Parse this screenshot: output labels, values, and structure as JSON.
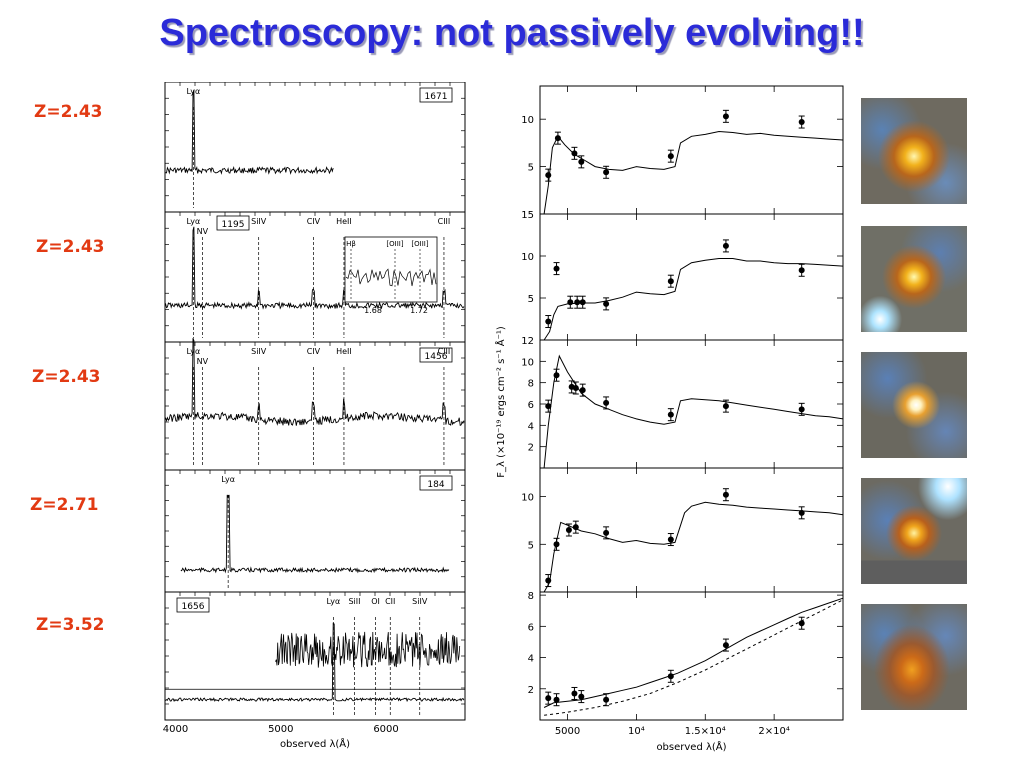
{
  "title": "Spectroscopy: not passively evolving!!",
  "redshifts": [
    "Z=2.43",
    "Z=2.43",
    "Z=2.43",
    "Z=2.71",
    "Z=3.52"
  ],
  "spectra": {
    "xlabel": "observed λ(Å)",
    "xticks": [
      "4000",
      "5000",
      "6000"
    ],
    "panels": [
      {
        "id": "1671",
        "lines": [
          {
            "label": "Lyα",
            "wl": 4170
          }
        ]
      },
      {
        "id": "1195",
        "lines": [
          {
            "label": "Lyα",
            "wl": 4170
          },
          {
            "label": "NV",
            "wl": 4255
          },
          {
            "label": "SiIV",
            "wl": 4790
          },
          {
            "label": "CIV",
            "wl": 5310
          },
          {
            "label": "HeII",
            "wl": 5600
          },
          {
            "label": "CIII",
            "wl": 6550
          }
        ],
        "inset": {
          "lines": [
            "Hβ",
            "[OIII]",
            "[OIII]"
          ],
          "xticks": [
            "1.68",
            "1.72"
          ]
        }
      },
      {
        "id": "1456",
        "lines": [
          {
            "label": "Lyα",
            "wl": 4170
          },
          {
            "label": "NV",
            "wl": 4255
          },
          {
            "label": "SiIV",
            "wl": 4790
          },
          {
            "label": "CIV",
            "wl": 5310
          },
          {
            "label": "HeII",
            "wl": 5600
          },
          {
            "label": "CIII",
            "wl": 6550
          }
        ]
      },
      {
        "id": "184",
        "lines": [
          {
            "label": "Lyα",
            "wl": 4500
          }
        ]
      },
      {
        "id": "1656",
        "lines": [
          {
            "label": "Lyα",
            "wl": 5500
          },
          {
            "label": "SiII",
            "wl": 5700
          },
          {
            "label": "OI",
            "wl": 5900
          },
          {
            "label": "CII",
            "wl": 6040
          },
          {
            "label": "SiIV",
            "wl": 6320
          }
        ]
      }
    ]
  },
  "chart_data": {
    "type": "scatter",
    "xlabel": "observed λ(Å)",
    "ylabel": "F_λ (×10⁻¹⁹ ergs cm⁻² s⁻¹ Å⁻¹)",
    "xticks": [
      "5000",
      "10⁴",
      "1.5×10⁴",
      "2×10⁴"
    ],
    "xlim": [
      3000,
      25000
    ],
    "panels": [
      {
        "ylim": [
          0,
          13.5
        ],
        "yticks": [
          "5",
          "10"
        ],
        "points": [
          [
            3600,
            4.1
          ],
          [
            4300,
            8.0
          ],
          [
            5500,
            6.4
          ],
          [
            6000,
            5.5
          ],
          [
            7800,
            4.4
          ],
          [
            12500,
            6.1
          ],
          [
            16500,
            10.3
          ],
          [
            22000,
            9.7
          ]
        ],
        "model": [
          [
            3300,
            0
          ],
          [
            3600,
            3
          ],
          [
            3900,
            7
          ],
          [
            4300,
            8.2
          ],
          [
            4800,
            7.3
          ],
          [
            5500,
            6.3
          ],
          [
            6200,
            5.7
          ],
          [
            7000,
            5.0
          ],
          [
            8000,
            4.7
          ],
          [
            9000,
            4.6
          ],
          [
            10000,
            5.0
          ],
          [
            11000,
            4.8
          ],
          [
            12000,
            4.7
          ],
          [
            12800,
            5.0
          ],
          [
            13200,
            7.5
          ],
          [
            14000,
            8.2
          ],
          [
            15000,
            8.4
          ],
          [
            16000,
            8.7
          ],
          [
            17000,
            8.6
          ],
          [
            18000,
            8.4
          ],
          [
            19000,
            8.5
          ],
          [
            20000,
            8.3
          ],
          [
            21000,
            8.2
          ],
          [
            22000,
            8.1
          ],
          [
            23000,
            8.0
          ],
          [
            24000,
            7.9
          ],
          [
            25000,
            7.8
          ]
        ]
      },
      {
        "ylim": [
          0,
          15
        ],
        "yticks": [
          "5",
          "10",
          "15"
        ],
        "points": [
          [
            3600,
            2.2
          ],
          [
            4200,
            8.5
          ],
          [
            5200,
            4.5
          ],
          [
            5700,
            4.5
          ],
          [
            6100,
            4.5
          ],
          [
            7800,
            4.3
          ],
          [
            12500,
            7.0
          ],
          [
            16500,
            11.2
          ],
          [
            22000,
            8.3
          ]
        ],
        "model": [
          [
            3300,
            0
          ],
          [
            3700,
            1
          ],
          [
            4000,
            3
          ],
          [
            4300,
            4
          ],
          [
            5000,
            4.3
          ],
          [
            6000,
            4.4
          ],
          [
            7000,
            4.4
          ],
          [
            8000,
            4.7
          ],
          [
            9000,
            5.1
          ],
          [
            10000,
            5.7
          ],
          [
            11000,
            5.5
          ],
          [
            12000,
            5.4
          ],
          [
            12800,
            5.8
          ],
          [
            13200,
            8.4
          ],
          [
            14000,
            9.2
          ],
          [
            15000,
            9.5
          ],
          [
            16000,
            9.7
          ],
          [
            17000,
            9.7
          ],
          [
            18000,
            9.4
          ],
          [
            19000,
            9.4
          ],
          [
            20000,
            9.2
          ],
          [
            21000,
            9.1
          ],
          [
            22000,
            9.1
          ],
          [
            23000,
            9.0
          ],
          [
            24000,
            8.9
          ],
          [
            25000,
            8.8
          ]
        ]
      },
      {
        "ylim": [
          0,
          12
        ],
        "yticks": [
          "2",
          "4",
          "6",
          "8",
          "10",
          "12"
        ],
        "points": [
          [
            3600,
            5.8
          ],
          [
            4200,
            8.7
          ],
          [
            5300,
            7.6
          ],
          [
            5600,
            7.5
          ],
          [
            6100,
            7.3
          ],
          [
            7800,
            6.1
          ],
          [
            12500,
            5.0
          ],
          [
            16500,
            5.8
          ],
          [
            22000,
            5.5
          ]
        ],
        "model": [
          [
            3300,
            0
          ],
          [
            3600,
            4
          ],
          [
            4000,
            8
          ],
          [
            4400,
            10.5
          ],
          [
            5000,
            9.0
          ],
          [
            6000,
            7.0
          ],
          [
            7000,
            6.0
          ],
          [
            8000,
            5.5
          ],
          [
            9000,
            5.0
          ],
          [
            10000,
            4.6
          ],
          [
            11000,
            4.3
          ],
          [
            12000,
            4.1
          ],
          [
            12800,
            4.3
          ],
          [
            13200,
            6.3
          ],
          [
            14000,
            6.5
          ],
          [
            15000,
            6.4
          ],
          [
            16000,
            6.3
          ],
          [
            17000,
            6.1
          ],
          [
            18000,
            5.9
          ],
          [
            19000,
            5.7
          ],
          [
            20000,
            5.5
          ],
          [
            21000,
            5.3
          ],
          [
            22000,
            5.1
          ],
          [
            23000,
            4.9
          ],
          [
            24000,
            4.8
          ],
          [
            25000,
            4.6
          ]
        ]
      },
      {
        "ylim": [
          0,
          13
        ],
        "yticks": [
          "5",
          "10"
        ],
        "points": [
          [
            3600,
            1.2
          ],
          [
            4200,
            5.0
          ],
          [
            5100,
            6.5
          ],
          [
            5600,
            6.8
          ],
          [
            7800,
            6.2
          ],
          [
            12500,
            5.5
          ],
          [
            16500,
            10.2
          ],
          [
            22000,
            8.3
          ]
        ],
        "model": [
          [
            3300,
            0
          ],
          [
            3700,
            1
          ],
          [
            4000,
            4
          ],
          [
            4500,
            7.3
          ],
          [
            5000,
            7.0
          ],
          [
            6000,
            6.4
          ],
          [
            7000,
            6.1
          ],
          [
            8000,
            5.6
          ],
          [
            9000,
            5.2
          ],
          [
            10000,
            5.4
          ],
          [
            11000,
            5.1
          ],
          [
            12000,
            5.0
          ],
          [
            12800,
            5.2
          ],
          [
            13500,
            8.3
          ],
          [
            14000,
            9.0
          ],
          [
            15000,
            9.4
          ],
          [
            16000,
            9.2
          ],
          [
            17000,
            9.1
          ],
          [
            18000,
            8.9
          ],
          [
            19000,
            8.8
          ],
          [
            20000,
            8.7
          ],
          [
            21000,
            8.6
          ],
          [
            22000,
            8.5
          ],
          [
            23000,
            8.4
          ],
          [
            24000,
            8.3
          ],
          [
            25000,
            8.1
          ]
        ]
      },
      {
        "ylim": [
          0,
          8.2
        ],
        "yticks": [
          "2",
          "4",
          "6",
          "8"
        ],
        "points": [
          [
            3600,
            1.4
          ],
          [
            4200,
            1.3
          ],
          [
            5500,
            1.7
          ],
          [
            6000,
            1.5
          ],
          [
            7800,
            1.3
          ],
          [
            12500,
            2.8
          ],
          [
            16500,
            4.8
          ],
          [
            22000,
            6.2
          ]
        ],
        "model": [
          [
            3300,
            0.8
          ],
          [
            4000,
            1.1
          ],
          [
            5000,
            1.2
          ],
          [
            6000,
            1.3
          ],
          [
            7000,
            1.5
          ],
          [
            8000,
            1.7
          ],
          [
            9000,
            1.9
          ],
          [
            10000,
            2.1
          ],
          [
            11000,
            2.4
          ],
          [
            12000,
            2.7
          ],
          [
            13000,
            3.0
          ],
          [
            14000,
            3.4
          ],
          [
            15000,
            3.8
          ],
          [
            16000,
            4.3
          ],
          [
            17000,
            4.8
          ],
          [
            18000,
            5.3
          ],
          [
            19000,
            5.7
          ],
          [
            20000,
            6.1
          ],
          [
            21000,
            6.5
          ],
          [
            22000,
            6.9
          ],
          [
            23000,
            7.2
          ],
          [
            24000,
            7.5
          ],
          [
            25000,
            7.8
          ]
        ],
        "model2": [
          [
            3300,
            0.3
          ],
          [
            5000,
            0.5
          ],
          [
            7000,
            0.8
          ],
          [
            9000,
            1.2
          ],
          [
            11000,
            1.7
          ],
          [
            13000,
            2.4
          ],
          [
            15000,
            3.2
          ],
          [
            17000,
            4.1
          ],
          [
            19000,
            5.0
          ],
          [
            21000,
            5.9
          ],
          [
            23000,
            6.8
          ],
          [
            25000,
            7.7
          ]
        ]
      }
    ]
  },
  "colors": {
    "title": "#2b2bd8",
    "redshift": "#e23a13"
  }
}
